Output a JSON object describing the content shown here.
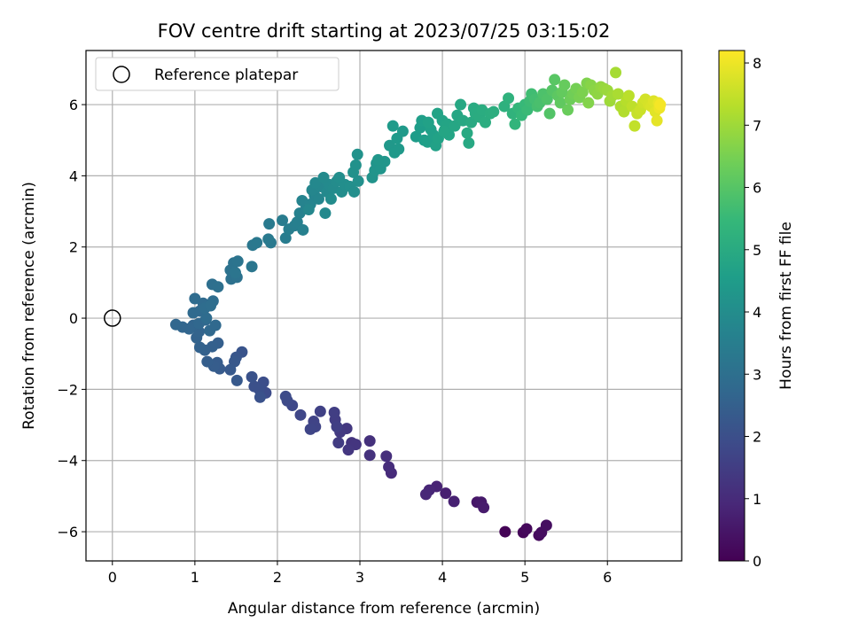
{
  "chart_data": {
    "type": "scatter",
    "title": "FOV centre drift starting at 2023/07/25 03:15:02",
    "xlabel": "Angular distance from reference (arcmin)",
    "ylabel": "Rotation from reference (arcmin)",
    "xlim": [
      -0.32,
      6.9
    ],
    "ylim": [
      -6.82,
      7.52
    ],
    "x_ticks": [
      0,
      1,
      2,
      3,
      4,
      5,
      6
    ],
    "y_ticks": [
      -6,
      -4,
      -2,
      0,
      2,
      4,
      6
    ],
    "grid": true,
    "legend_position": "top-left",
    "legend": [
      "Reference platepar"
    ],
    "reference_point": {
      "name": "Reference platepar",
      "x": 0,
      "y": 0
    },
    "colorbar": {
      "label": "Hours from first FF file",
      "range": [
        0,
        8.2
      ],
      "ticks": [
        0,
        1,
        2,
        3,
        4,
        5,
        6,
        7,
        8
      ],
      "colormap": "viridis"
    },
    "colors": {
      "viridis": [
        "#440154",
        "#482878",
        "#3e4989",
        "#31688e",
        "#26828e",
        "#1f9e89",
        "#35b779",
        "#6ece58",
        "#b5de2b",
        "#fde725"
      ]
    },
    "series": [
      {
        "points": [
          [
            4.76,
            -6.0,
            0.05
          ],
          [
            4.98,
            -6.02,
            0.12
          ],
          [
            5.02,
            -5.92,
            0.18
          ],
          [
            5.17,
            -6.1,
            0.22
          ],
          [
            5.2,
            -6.02,
            0.27
          ],
          [
            5.26,
            -5.82,
            0.3
          ],
          [
            4.42,
            -5.17,
            0.5
          ],
          [
            4.47,
            -5.17,
            0.55
          ],
          [
            4.5,
            -5.32,
            0.6
          ],
          [
            4.04,
            -4.92,
            0.7
          ],
          [
            4.14,
            -5.15,
            0.75
          ],
          [
            3.93,
            -4.73,
            0.8
          ],
          [
            3.84,
            -4.83,
            0.86
          ],
          [
            3.8,
            -4.95,
            0.9
          ],
          [
            3.38,
            -4.35,
            1.0
          ],
          [
            3.35,
            -4.18,
            1.05
          ],
          [
            3.32,
            -3.88,
            1.1
          ],
          [
            3.12,
            -3.45,
            1.15
          ],
          [
            3.12,
            -3.85,
            1.2
          ],
          [
            2.9,
            -3.5,
            1.25
          ],
          [
            2.95,
            -3.55,
            1.28
          ],
          [
            2.86,
            -3.7,
            1.32
          ],
          [
            2.84,
            -3.1,
            1.36
          ],
          [
            2.76,
            -3.2,
            1.4
          ],
          [
            2.74,
            -3.5,
            1.45
          ],
          [
            2.7,
            -2.85,
            1.5
          ],
          [
            2.69,
            -2.65,
            1.52
          ],
          [
            2.72,
            -3.05,
            1.55
          ],
          [
            2.52,
            -2.62,
            1.6
          ],
          [
            2.44,
            -2.9,
            1.65
          ],
          [
            2.46,
            -3.05,
            1.68
          ],
          [
            2.4,
            -3.12,
            1.72
          ],
          [
            2.28,
            -2.72,
            1.76
          ],
          [
            2.18,
            -2.45,
            1.8
          ],
          [
            2.12,
            -2.32,
            1.84
          ],
          [
            2.1,
            -2.2,
            1.88
          ],
          [
            1.86,
            -2.1,
            1.92
          ],
          [
            1.83,
            -1.8,
            1.96
          ],
          [
            1.78,
            -2.0,
            2.0
          ],
          [
            1.72,
            -1.92,
            2.04
          ],
          [
            1.69,
            -1.65,
            2.08
          ],
          [
            1.79,
            -2.22,
            2.1
          ],
          [
            1.57,
            -0.95,
            2.15
          ],
          [
            1.5,
            -1.1,
            2.2
          ],
          [
            1.48,
            -1.22,
            2.25
          ],
          [
            1.51,
            -1.75,
            2.28
          ],
          [
            1.43,
            -1.45,
            2.3
          ],
          [
            1.3,
            -1.42,
            2.34
          ],
          [
            1.27,
            -1.25,
            2.38
          ],
          [
            1.23,
            -1.35,
            2.4
          ],
          [
            1.15,
            -1.22,
            2.45
          ],
          [
            1.28,
            -0.7,
            2.48
          ],
          [
            1.21,
            -0.8,
            2.5
          ],
          [
            1.12,
            -0.9,
            2.53
          ],
          [
            1.06,
            -0.82,
            2.56
          ],
          [
            1.02,
            -0.55,
            2.6
          ],
          [
            1.05,
            -0.38,
            2.62
          ],
          [
            0.98,
            -0.2,
            2.64
          ],
          [
            0.93,
            -0.3,
            2.66
          ],
          [
            0.85,
            -0.25,
            2.68
          ],
          [
            0.77,
            -0.18,
            2.7
          ],
          [
            1.05,
            -0.15,
            2.72
          ],
          [
            1.13,
            -0.05,
            2.74
          ],
          [
            1.18,
            -0.35,
            2.76
          ],
          [
            1.25,
            -0.2,
            2.78
          ],
          [
            0.98,
            0.15,
            2.8
          ],
          [
            1.06,
            0.2,
            2.82
          ],
          [
            1.1,
            0.42,
            2.84
          ],
          [
            1.0,
            0.55,
            2.86
          ],
          [
            1.14,
            0.0,
            2.88
          ],
          [
            1.12,
            0.28,
            2.9
          ],
          [
            1.22,
            0.48,
            2.92
          ],
          [
            1.19,
            0.35,
            2.94
          ],
          [
            1.21,
            0.95,
            2.98
          ],
          [
            1.28,
            0.88,
            3.0
          ],
          [
            1.44,
            1.1,
            3.05
          ],
          [
            1.51,
            1.15,
            3.08
          ],
          [
            1.43,
            1.35,
            3.1
          ],
          [
            1.47,
            1.55,
            3.12
          ],
          [
            1.52,
            1.6,
            3.15
          ],
          [
            1.49,
            1.28,
            3.18
          ],
          [
            1.69,
            1.45,
            3.22
          ],
          [
            1.7,
            2.05,
            3.25
          ],
          [
            1.75,
            2.12,
            3.28
          ],
          [
            1.92,
            2.12,
            3.32
          ],
          [
            1.89,
            2.22,
            3.35
          ],
          [
            1.9,
            2.65,
            3.38
          ],
          [
            2.06,
            2.75,
            3.42
          ],
          [
            2.1,
            2.25,
            3.45
          ],
          [
            2.14,
            2.5,
            3.5
          ],
          [
            2.21,
            2.6,
            3.52
          ],
          [
            2.24,
            2.7,
            3.55
          ],
          [
            2.31,
            2.48,
            3.58
          ],
          [
            2.27,
            2.95,
            3.62
          ],
          [
            2.35,
            3.1,
            3.65
          ],
          [
            2.3,
            3.3,
            3.68
          ],
          [
            2.4,
            3.2,
            3.7
          ],
          [
            2.45,
            3.45,
            3.72
          ],
          [
            2.5,
            3.35,
            3.75
          ],
          [
            2.42,
            3.6,
            3.78
          ],
          [
            2.38,
            3.05,
            3.8
          ],
          [
            2.52,
            3.7,
            3.82
          ],
          [
            2.46,
            3.8,
            3.84
          ],
          [
            2.58,
            2.95,
            3.86
          ],
          [
            2.6,
            3.55,
            3.88
          ],
          [
            2.63,
            3.75,
            3.9
          ],
          [
            2.56,
            3.95,
            3.92
          ],
          [
            2.68,
            3.65,
            3.94
          ],
          [
            2.72,
            3.85,
            3.96
          ],
          [
            2.65,
            3.35,
            3.98
          ],
          [
            2.78,
            3.55,
            4.0
          ],
          [
            2.82,
            3.75,
            4.02
          ],
          [
            2.75,
            3.95,
            4.04
          ],
          [
            2.88,
            3.7,
            4.06
          ],
          [
            2.93,
            3.55,
            4.08
          ],
          [
            2.98,
            3.85,
            4.1
          ],
          [
            2.92,
            4.1,
            4.12
          ],
          [
            2.95,
            4.3,
            4.14
          ],
          [
            2.97,
            4.6,
            4.16
          ],
          [
            3.15,
            3.95,
            4.2
          ],
          [
            3.18,
            4.15,
            4.22
          ],
          [
            3.2,
            4.35,
            4.24
          ],
          [
            3.25,
            4.2,
            4.26
          ],
          [
            3.3,
            4.4,
            4.28
          ],
          [
            3.22,
            4.45,
            4.3
          ],
          [
            3.36,
            4.85,
            4.35
          ],
          [
            3.42,
            4.65,
            4.38
          ],
          [
            3.47,
            4.75,
            4.4
          ],
          [
            3.52,
            5.25,
            4.42
          ],
          [
            3.45,
            5.05,
            4.44
          ],
          [
            3.4,
            5.4,
            4.46
          ],
          [
            3.68,
            5.1,
            4.5
          ],
          [
            3.73,
            5.35,
            4.53
          ],
          [
            3.78,
            5.0,
            4.56
          ],
          [
            3.75,
            5.55,
            4.58
          ],
          [
            3.82,
            4.95,
            4.6
          ],
          [
            3.86,
            5.3,
            4.62
          ],
          [
            3.89,
            5.15,
            4.64
          ],
          [
            3.83,
            5.5,
            4.66
          ],
          [
            3.92,
            4.85,
            4.68
          ],
          [
            3.95,
            5.05,
            4.7
          ],
          [
            3.94,
            5.75,
            4.72
          ],
          [
            4.0,
            5.55,
            4.74
          ],
          [
            4.03,
            5.3,
            4.76
          ],
          [
            4.06,
            5.45,
            4.78
          ],
          [
            4.08,
            5.15,
            4.8
          ],
          [
            4.02,
            5.25,
            4.82
          ],
          [
            4.15,
            5.4,
            4.84
          ],
          [
            4.18,
            5.7,
            4.86
          ],
          [
            4.22,
            6.0,
            4.88
          ],
          [
            4.25,
            5.55,
            4.9
          ],
          [
            4.32,
            4.92,
            4.92
          ],
          [
            4.3,
            5.2,
            4.94
          ],
          [
            4.35,
            5.5,
            4.96
          ],
          [
            4.38,
            5.9,
            5.0
          ],
          [
            4.4,
            5.75,
            5.02
          ],
          [
            4.45,
            5.65,
            5.04
          ],
          [
            4.48,
            5.85,
            5.06
          ],
          [
            4.52,
            5.5,
            5.08
          ],
          [
            4.58,
            5.75,
            5.1
          ],
          [
            4.62,
            5.8,
            5.12
          ],
          [
            4.75,
            5.95,
            5.2
          ],
          [
            4.8,
            6.18,
            5.25
          ],
          [
            4.85,
            5.75,
            5.3
          ],
          [
            4.88,
            5.45,
            5.35
          ],
          [
            4.92,
            5.9,
            5.4
          ],
          [
            4.96,
            5.7,
            5.45
          ],
          [
            5.0,
            6.0,
            5.5
          ],
          [
            5.03,
            5.85,
            5.55
          ],
          [
            5.06,
            6.1,
            5.6
          ],
          [
            5.08,
            6.3,
            5.65
          ],
          [
            5.12,
            6.15,
            5.7
          ],
          [
            5.15,
            5.95,
            5.75
          ],
          [
            5.18,
            6.05,
            5.8
          ],
          [
            5.22,
            6.3,
            5.85
          ],
          [
            5.27,
            6.15,
            5.9
          ],
          [
            5.3,
            5.75,
            5.95
          ],
          [
            5.33,
            6.4,
            6.0
          ],
          [
            5.36,
            6.7,
            6.05
          ],
          [
            5.4,
            6.25,
            6.1
          ],
          [
            5.43,
            6.05,
            6.15
          ],
          [
            5.45,
            6.35,
            6.2
          ],
          [
            5.48,
            6.55,
            6.25
          ],
          [
            5.52,
            5.85,
            6.3
          ],
          [
            5.55,
            6.15,
            6.35
          ],
          [
            5.58,
            6.3,
            6.4
          ],
          [
            5.62,
            6.45,
            6.45
          ],
          [
            5.66,
            6.2,
            6.5
          ],
          [
            5.7,
            6.35,
            6.55
          ],
          [
            5.75,
            6.6,
            6.6
          ],
          [
            5.77,
            6.05,
            6.65
          ],
          [
            5.8,
            6.55,
            6.7
          ],
          [
            5.84,
            6.4,
            6.75
          ],
          [
            5.88,
            6.3,
            6.8
          ],
          [
            5.92,
            6.5,
            6.85
          ],
          [
            5.96,
            6.45,
            6.9
          ],
          [
            6.0,
            6.4,
            6.95
          ],
          [
            6.03,
            6.1,
            7.0
          ],
          [
            6.06,
            6.25,
            7.05
          ],
          [
            6.1,
            6.9,
            7.1
          ],
          [
            6.13,
            6.3,
            7.15
          ],
          [
            6.16,
            5.95,
            7.2
          ],
          [
            6.2,
            5.8,
            7.25
          ],
          [
            6.23,
            6.1,
            7.3
          ],
          [
            6.26,
            6.25,
            7.35
          ],
          [
            6.3,
            5.95,
            7.4
          ],
          [
            6.33,
            5.4,
            7.45
          ],
          [
            6.36,
            5.75,
            7.5
          ],
          [
            6.4,
            5.85,
            7.55
          ],
          [
            6.43,
            6.05,
            7.6
          ],
          [
            6.46,
            6.15,
            7.65
          ],
          [
            6.5,
            6.0,
            7.7
          ],
          [
            6.53,
            5.95,
            7.75
          ],
          [
            6.56,
            6.1,
            7.8
          ],
          [
            6.58,
            5.8,
            7.85
          ],
          [
            6.6,
            5.55,
            7.9
          ],
          [
            6.62,
            6.05,
            7.95
          ],
          [
            6.63,
            5.9,
            8.0
          ],
          [
            6.64,
            6.0,
            8.1
          ]
        ]
      }
    ]
  }
}
